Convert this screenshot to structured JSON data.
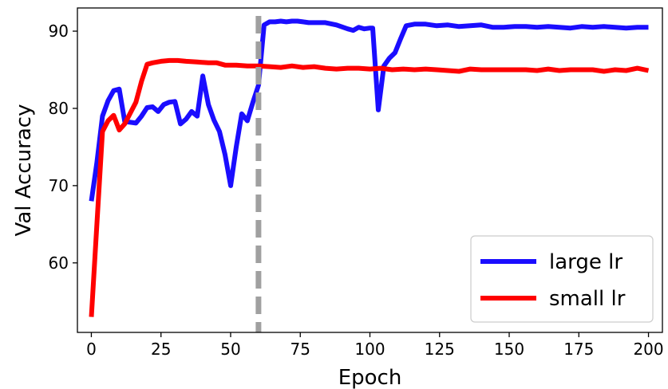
{
  "chart_data": {
    "type": "line",
    "xlabel": "Epoch",
    "ylabel": "Val Accuracy",
    "xlim": [
      -5,
      205
    ],
    "ylim": [
      51,
      93
    ],
    "xticks": [
      0,
      25,
      50,
      75,
      100,
      125,
      150,
      175,
      200
    ],
    "yticks": [
      60,
      70,
      80,
      90
    ],
    "grid": false,
    "legend_position": "bottom-right",
    "annotations": [
      {
        "type": "vertical-dashed-line",
        "x": 60,
        "color": "#a0a0a0"
      }
    ],
    "series": [
      {
        "name": "large lr",
        "color": "#1a0dff",
        "points": [
          [
            0,
            68
          ],
          [
            2,
            73
          ],
          [
            4,
            79
          ],
          [
            6,
            81
          ],
          [
            8,
            82.3
          ],
          [
            10,
            82.5
          ],
          [
            12,
            78.3
          ],
          [
            14,
            78.2
          ],
          [
            16,
            78.1
          ],
          [
            18,
            79
          ],
          [
            20,
            80.1
          ],
          [
            22,
            80.2
          ],
          [
            24,
            79.6
          ],
          [
            26,
            80.5
          ],
          [
            28,
            80.8
          ],
          [
            30,
            80.9
          ],
          [
            32,
            78
          ],
          [
            34,
            78.6
          ],
          [
            36,
            79.6
          ],
          [
            38,
            79
          ],
          [
            40,
            84.2
          ],
          [
            42,
            80.5
          ],
          [
            44,
            78.5
          ],
          [
            46,
            77
          ],
          [
            48,
            74
          ],
          [
            50,
            70
          ],
          [
            52,
            75
          ],
          [
            54,
            79.3
          ],
          [
            56,
            78.4
          ],
          [
            58,
            80.8
          ],
          [
            60,
            83
          ],
          [
            62,
            90.8
          ],
          [
            64,
            91.2
          ],
          [
            66,
            91.2
          ],
          [
            68,
            91.3
          ],
          [
            70,
            91.2
          ],
          [
            72,
            91.3
          ],
          [
            74,
            91.3
          ],
          [
            76,
            91.2
          ],
          [
            78,
            91.1
          ],
          [
            80,
            91.1
          ],
          [
            84,
            91.1
          ],
          [
            88,
            90.8
          ],
          [
            92,
            90.3
          ],
          [
            94,
            90.1
          ],
          [
            96,
            90.5
          ],
          [
            98,
            90.3
          ],
          [
            100,
            90.4
          ],
          [
            101,
            90.4
          ],
          [
            103,
            79.8
          ],
          [
            105,
            85.5
          ],
          [
            107,
            86.5
          ],
          [
            109,
            87.2
          ],
          [
            111,
            89
          ],
          [
            113,
            90.7
          ],
          [
            116,
            90.9
          ],
          [
            120,
            90.9
          ],
          [
            124,
            90.7
          ],
          [
            128,
            90.8
          ],
          [
            132,
            90.6
          ],
          [
            136,
            90.7
          ],
          [
            140,
            90.8
          ],
          [
            144,
            90.5
          ],
          [
            148,
            90.5
          ],
          [
            152,
            90.6
          ],
          [
            156,
            90.6
          ],
          [
            160,
            90.5
          ],
          [
            164,
            90.6
          ],
          [
            168,
            90.5
          ],
          [
            172,
            90.4
          ],
          [
            176,
            90.6
          ],
          [
            180,
            90.5
          ],
          [
            184,
            90.6
          ],
          [
            188,
            90.5
          ],
          [
            192,
            90.4
          ],
          [
            196,
            90.5
          ],
          [
            200,
            90.5
          ]
        ]
      },
      {
        "name": "small lr",
        "color": "#ff0000",
        "points": [
          [
            0,
            53
          ],
          [
            2,
            65
          ],
          [
            4,
            77
          ],
          [
            6,
            78.4
          ],
          [
            8,
            79.1
          ],
          [
            10,
            77.2
          ],
          [
            12,
            78
          ],
          [
            14,
            79.4
          ],
          [
            16,
            80.8
          ],
          [
            18,
            83.5
          ],
          [
            20,
            85.7
          ],
          [
            22,
            85.9
          ],
          [
            25,
            86.1
          ],
          [
            28,
            86.2
          ],
          [
            31,
            86.2
          ],
          [
            34,
            86.1
          ],
          [
            38,
            86
          ],
          [
            42,
            85.9
          ],
          [
            45,
            85.9
          ],
          [
            48,
            85.6
          ],
          [
            52,
            85.6
          ],
          [
            56,
            85.5
          ],
          [
            60,
            85.5
          ],
          [
            64,
            85.4
          ],
          [
            68,
            85.3
          ],
          [
            72,
            85.5
          ],
          [
            76,
            85.3
          ],
          [
            80,
            85.4
          ],
          [
            84,
            85.2
          ],
          [
            88,
            85.1
          ],
          [
            92,
            85.2
          ],
          [
            96,
            85.2
          ],
          [
            100,
            85.1
          ],
          [
            104,
            85.2
          ],
          [
            108,
            85
          ],
          [
            112,
            85.1
          ],
          [
            116,
            85
          ],
          [
            120,
            85.1
          ],
          [
            124,
            85
          ],
          [
            128,
            84.9
          ],
          [
            132,
            84.8
          ],
          [
            136,
            85.1
          ],
          [
            140,
            85
          ],
          [
            144,
            85
          ],
          [
            148,
            85
          ],
          [
            152,
            85
          ],
          [
            156,
            85
          ],
          [
            160,
            84.9
          ],
          [
            164,
            85.1
          ],
          [
            168,
            84.9
          ],
          [
            172,
            85
          ],
          [
            176,
            85
          ],
          [
            180,
            85
          ],
          [
            184,
            84.8
          ],
          [
            188,
            85
          ],
          [
            192,
            84.9
          ],
          [
            196,
            85.2
          ],
          [
            200,
            84.9
          ]
        ]
      }
    ]
  }
}
